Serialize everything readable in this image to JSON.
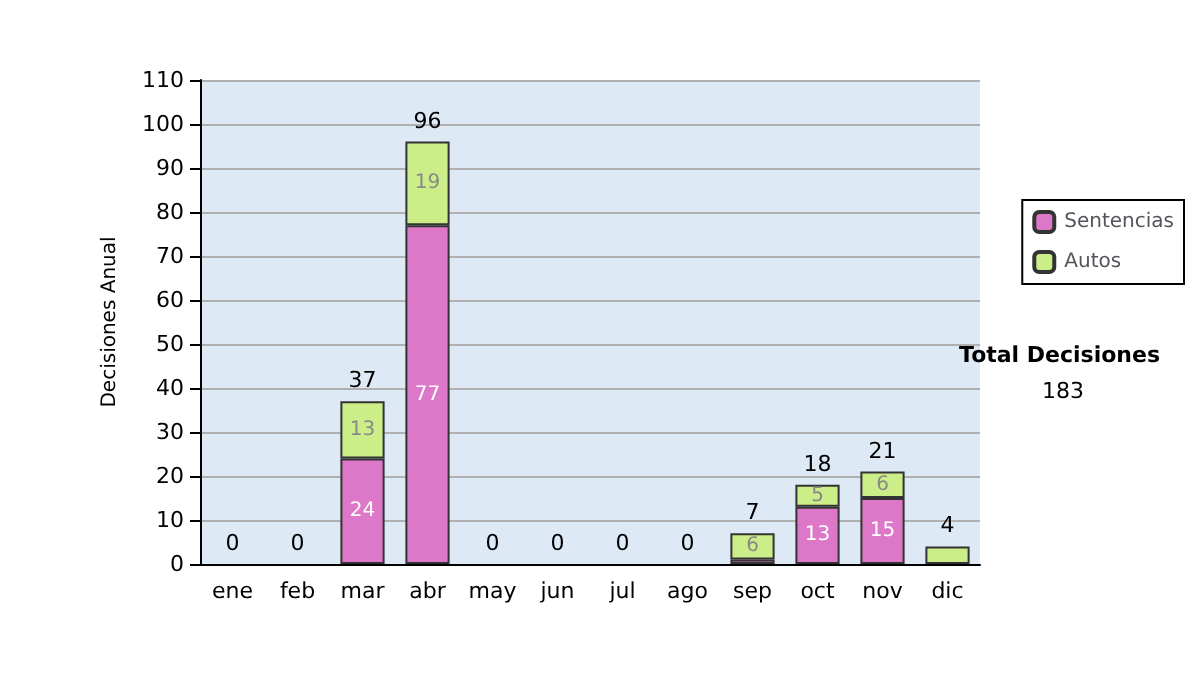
{
  "chart_data": {
    "type": "bar",
    "stacked": true,
    "ylabel": "Decisiones Anual",
    "categories": [
      "ene",
      "feb",
      "mar",
      "abr",
      "may",
      "jun",
      "jul",
      "ago",
      "sep",
      "oct",
      "nov",
      "dic"
    ],
    "series": [
      {
        "name": "Sentencias",
        "color": "#dd77c8",
        "values": [
          0,
          0,
          24,
          77,
          0,
          0,
          0,
          0,
          1,
          13,
          15,
          0
        ],
        "value_labels": [
          null,
          null,
          "24",
          "77",
          null,
          null,
          null,
          null,
          null,
          "13",
          "15",
          null
        ]
      },
      {
        "name": "Autos",
        "color": "#ccee88",
        "values": [
          0,
          0,
          13,
          19,
          0,
          0,
          0,
          0,
          6,
          5,
          6,
          4
        ],
        "value_labels": [
          null,
          null,
          "13",
          "19",
          null,
          null,
          null,
          null,
          "6",
          "5",
          "6",
          null
        ]
      }
    ],
    "totals": [
      "0",
      "0",
      "37",
      "96",
      "0",
      "0",
      "0",
      "0",
      "7",
      "18",
      "21",
      "4"
    ],
    "ylim": [
      0,
      110
    ],
    "yticks": [
      0,
      10,
      20,
      30,
      40,
      50,
      60,
      70,
      80,
      90,
      100,
      110
    ],
    "grid": "y",
    "legend": "right",
    "annotations": [
      "Total Decisiones",
      "183"
    ]
  }
}
